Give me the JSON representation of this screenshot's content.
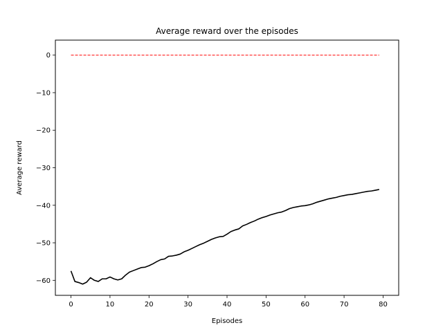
{
  "chart_data": {
    "type": "line",
    "title": "Average reward over the episodes",
    "xlabel": "Episodes",
    "ylabel": "Average reward",
    "xlim": [
      -4,
      84
    ],
    "ylim": [
      -64,
      4
    ],
    "xticks": [
      0,
      10,
      20,
      30,
      40,
      50,
      60,
      70,
      80
    ],
    "yticks": [
      0,
      -10,
      -20,
      -30,
      -40,
      -50,
      -60
    ],
    "grid": false,
    "series": [
      {
        "color": "#000000",
        "style": "solid",
        "x": [
          0,
          1,
          2,
          3,
          4,
          5,
          6,
          7,
          8,
          9,
          10,
          11,
          12,
          13,
          14,
          15,
          16,
          17,
          18,
          19,
          20,
          21,
          22,
          23,
          24,
          25,
          26,
          27,
          28,
          29,
          30,
          31,
          32,
          33,
          34,
          35,
          36,
          37,
          38,
          39,
          40,
          41,
          42,
          43,
          44,
          45,
          46,
          47,
          48,
          49,
          50,
          51,
          52,
          53,
          54,
          55,
          56,
          57,
          58,
          59,
          60,
          61,
          62,
          63,
          64,
          65,
          66,
          67,
          68,
          69,
          70,
          71,
          72,
          73,
          74,
          75,
          76,
          77,
          78,
          79
        ],
        "y": [
          -57.5,
          -60.3,
          -60.6,
          -61.0,
          -60.5,
          -59.3,
          -60.0,
          -60.3,
          -59.6,
          -59.6,
          -59.1,
          -59.6,
          -59.9,
          -59.6,
          -58.6,
          -57.8,
          -57.4,
          -57.0,
          -56.6,
          -56.5,
          -56.1,
          -55.6,
          -55.0,
          -54.5,
          -54.3,
          -53.6,
          -53.5,
          -53.3,
          -53.0,
          -52.4,
          -52.0,
          -51.5,
          -51.0,
          -50.5,
          -50.1,
          -49.6,
          -49.1,
          -48.7,
          -48.4,
          -48.3,
          -47.7,
          -47.0,
          -46.6,
          -46.3,
          -45.5,
          -45.1,
          -44.6,
          -44.2,
          -43.7,
          -43.3,
          -43.0,
          -42.6,
          -42.3,
          -42.0,
          -41.8,
          -41.4,
          -40.9,
          -40.6,
          -40.4,
          -40.2,
          -40.1,
          -39.9,
          -39.6,
          -39.2,
          -38.9,
          -38.6,
          -38.3,
          -38.1,
          -37.9,
          -37.6,
          -37.4,
          -37.2,
          -37.1,
          -36.9,
          -36.7,
          -36.5,
          -36.3,
          -36.2,
          -36.0,
          -35.8
        ]
      },
      {
        "color": "#ff0000",
        "style": "dashed",
        "x": [
          0,
          79
        ],
        "y": [
          0,
          0
        ]
      }
    ]
  }
}
